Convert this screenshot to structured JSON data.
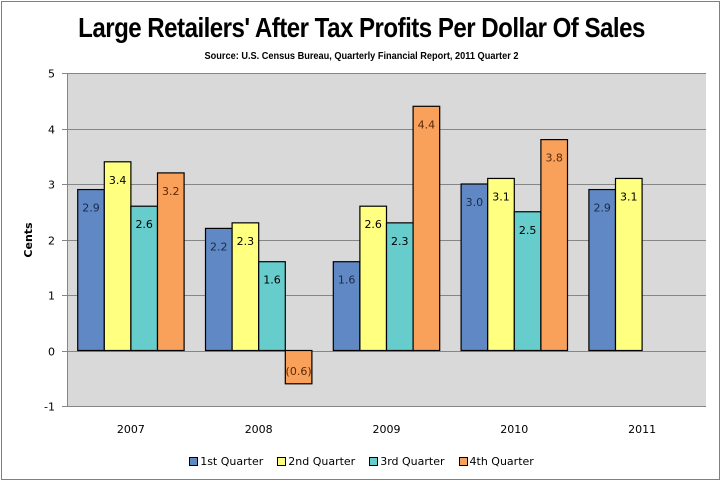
{
  "chart_data": {
    "type": "bar",
    "title": "Large Retailers' After Tax Profits Per Dollar Of Sales",
    "subtitle": "Source: U.S. Census Bureau, Quarterly Financial Report, 2011 Quarter 2",
    "xlabel": "",
    "ylabel": "Cents",
    "ylim": [
      -1,
      5
    ],
    "yticks": [
      -1,
      0,
      1,
      2,
      3,
      4,
      5
    ],
    "grid": true,
    "legend_position": "bottom",
    "categories": [
      "2007",
      "2008",
      "2009",
      "2010",
      "2011"
    ],
    "series": [
      {
        "name": "1st Quarter",
        "color": "#6088c4",
        "values": [
          2.9,
          2.2,
          1.6,
          3.0,
          2.9
        ],
        "labels": [
          "2.9",
          "2.2",
          "1.6",
          "3.0",
          "2.9"
        ]
      },
      {
        "name": "2nd Quarter",
        "color": "#ffff80",
        "values": [
          3.4,
          2.3,
          2.6,
          3.1,
          3.1
        ],
        "labels": [
          "3.4",
          "2.3",
          "2.6",
          "3.1",
          "3.1"
        ]
      },
      {
        "name": "3rd Quarter",
        "color": "#66cccc",
        "values": [
          2.6,
          1.6,
          2.3,
          2.5,
          null
        ],
        "labels": [
          "2.6",
          "1.6",
          "2.3",
          "2.5",
          null
        ]
      },
      {
        "name": "4th Quarter",
        "color": "#f9a05a",
        "values": [
          3.2,
          -0.6,
          4.4,
          3.8,
          null
        ],
        "labels": [
          "3.2",
          "(0.6)",
          "4.4",
          "3.8",
          null
        ]
      }
    ],
    "colors": {
      "plot_background": "#d9d9d9",
      "gridline": "#868686"
    }
  }
}
